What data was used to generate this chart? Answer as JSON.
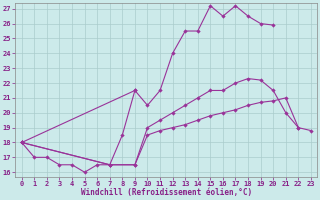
{
  "xlabel": "Windchill (Refroidissement éolien,°C)",
  "bg_color": "#cceaea",
  "grid_color": "#aacccc",
  "line_color": "#993399",
  "xmin": -0.5,
  "xmax": 23.5,
  "ymin": 15.7,
  "ymax": 27.4,
  "s1x": [
    0,
    1,
    2,
    3,
    4,
    5,
    6,
    7,
    8,
    9
  ],
  "s1y": [
    18.0,
    17.0,
    17.0,
    16.5,
    16.5,
    16.0,
    16.5,
    16.5,
    18.5,
    21.5
  ],
  "s2x": [
    0,
    9,
    10,
    11,
    12,
    13,
    14,
    15,
    16,
    17,
    18,
    19,
    20
  ],
  "s2y": [
    18.0,
    21.5,
    20.5,
    21.5,
    24.0,
    25.5,
    25.5,
    27.2,
    26.5,
    27.2,
    26.5,
    26.0,
    25.9
  ],
  "s3x": [
    0,
    7,
    9,
    10,
    11,
    12,
    13,
    14,
    15,
    16,
    17,
    18,
    19,
    20,
    21,
    22
  ],
  "s3y": [
    18.0,
    16.5,
    16.5,
    19.0,
    19.5,
    20.0,
    20.5,
    21.0,
    21.5,
    21.5,
    22.0,
    22.3,
    22.2,
    21.5,
    20.0,
    19.0
  ],
  "s4x": [
    0,
    7,
    9,
    10,
    11,
    12,
    13,
    14,
    15,
    16,
    17,
    18,
    19,
    20,
    21,
    22,
    23
  ],
  "s4y": [
    18.0,
    16.5,
    16.5,
    18.5,
    18.8,
    19.0,
    19.2,
    19.5,
    19.8,
    20.0,
    20.2,
    20.5,
    20.7,
    20.8,
    21.0,
    19.0,
    18.8
  ],
  "xticks": [
    0,
    1,
    2,
    3,
    4,
    5,
    6,
    7,
    8,
    9,
    10,
    11,
    12,
    13,
    14,
    15,
    16,
    17,
    18,
    19,
    20,
    21,
    22,
    23
  ],
  "yticks": [
    16,
    17,
    18,
    19,
    20,
    21,
    22,
    23,
    24,
    25,
    26,
    27
  ],
  "marker": "D",
  "markersize": 2.2,
  "linewidth": 0.8,
  "tick_labelsize": 5.0,
  "xlabel_fontsize": 5.5,
  "tick_color": "#882288"
}
